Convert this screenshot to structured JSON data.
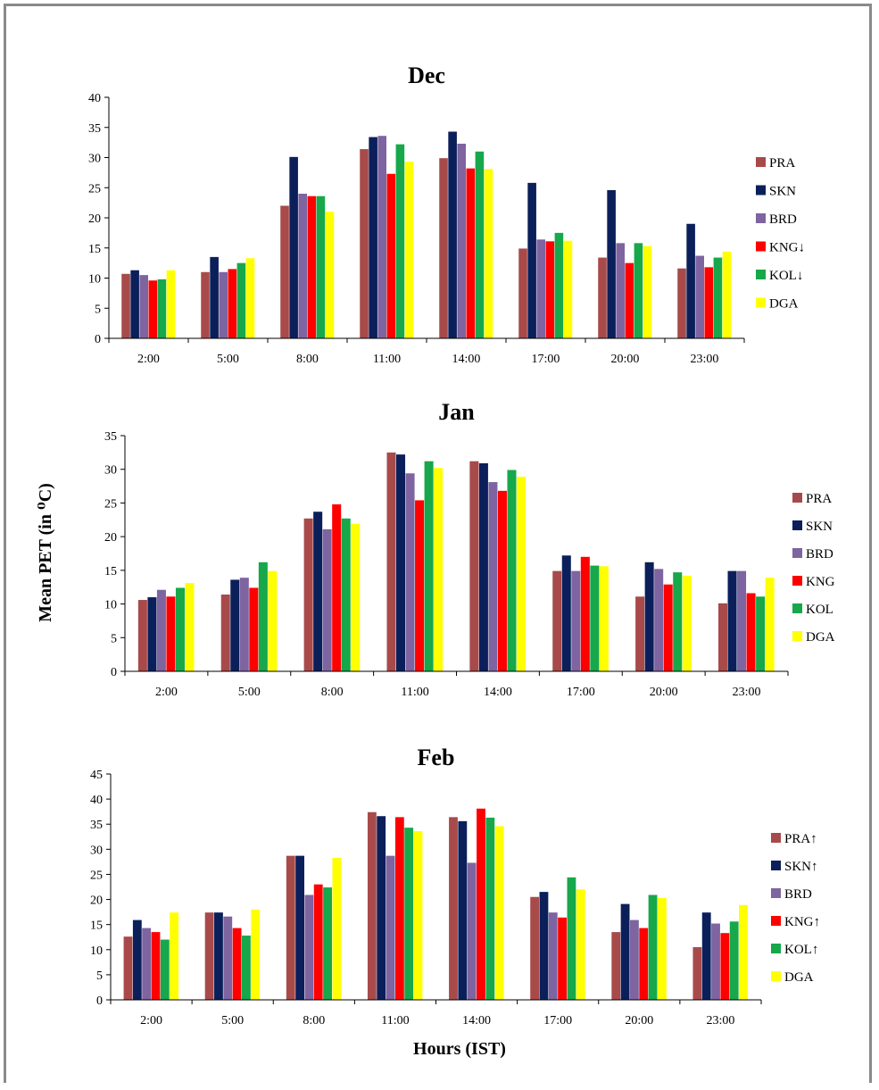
{
  "chart_data": [
    {
      "type": "bar",
      "title": "Dec",
      "categories": [
        "2:00",
        "5:00",
        "8:00",
        "11:00",
        "14:00",
        "17:00",
        "20:00",
        "23:00"
      ],
      "ylim": [
        0,
        40
      ],
      "yticks": [
        0,
        5,
        10,
        15,
        20,
        25,
        30,
        35,
        40
      ],
      "series": [
        {
          "name": "PRA",
          "values": [
            10.7,
            11.0,
            22.0,
            31.4,
            29.9,
            14.9,
            13.4,
            11.6
          ]
        },
        {
          "name": "SKN",
          "values": [
            11.3,
            13.5,
            30.1,
            33.4,
            34.3,
            25.8,
            24.6,
            19.0
          ]
        },
        {
          "name": "BRD",
          "values": [
            10.5,
            11.0,
            24.0,
            33.6,
            32.3,
            16.4,
            15.8,
            13.7
          ]
        },
        {
          "name": "KNG↓",
          "values": [
            9.6,
            11.5,
            23.6,
            27.3,
            28.2,
            16.1,
            12.5,
            11.8
          ]
        },
        {
          "name": "KOL↓",
          "values": [
            9.8,
            12.5,
            23.6,
            32.2,
            31.0,
            17.5,
            15.8,
            13.4
          ]
        },
        {
          "name": "DGA",
          "values": [
            11.3,
            13.3,
            21.0,
            29.3,
            28.1,
            16.2,
            15.3,
            14.4
          ]
        }
      ]
    },
    {
      "type": "bar",
      "title": "Jan",
      "ylabel": "Mean PET (in ⁰C)",
      "categories": [
        "2:00",
        "5:00",
        "8:00",
        "11:00",
        "14:00",
        "17:00",
        "20:00",
        "23:00"
      ],
      "ylim": [
        0,
        35
      ],
      "yticks": [
        0,
        5,
        10,
        15,
        20,
        25,
        30,
        35
      ],
      "series": [
        {
          "name": "PRA",
          "values": [
            10.6,
            11.4,
            22.7,
            32.5,
            31.2,
            14.9,
            11.1,
            10.1
          ]
        },
        {
          "name": "SKN",
          "values": [
            11.0,
            13.6,
            23.7,
            32.2,
            30.9,
            17.2,
            16.2,
            14.9
          ]
        },
        {
          "name": "BRD",
          "values": [
            12.1,
            13.9,
            21.1,
            29.4,
            28.1,
            14.9,
            15.2,
            14.9
          ]
        },
        {
          "name": "KNG",
          "values": [
            11.1,
            12.4,
            24.8,
            25.4,
            26.8,
            17.0,
            12.9,
            11.6
          ]
        },
        {
          "name": "KOL",
          "values": [
            12.4,
            16.2,
            22.7,
            31.2,
            29.9,
            15.7,
            14.7,
            11.1
          ]
        },
        {
          "name": "DGA",
          "values": [
            13.1,
            14.9,
            21.9,
            30.2,
            28.9,
            15.6,
            14.2,
            13.9
          ]
        }
      ]
    },
    {
      "type": "bar",
      "title": "Feb",
      "xlabel": "Hours (IST)",
      "categories": [
        "2:00",
        "5:00",
        "8:00",
        "11:00",
        "14:00",
        "17:00",
        "20:00",
        "23:00"
      ],
      "ylim": [
        0,
        45
      ],
      "yticks": [
        0,
        5,
        10,
        15,
        20,
        25,
        30,
        35,
        40,
        45
      ],
      "series": [
        {
          "name": "PRA↑",
          "values": [
            12.6,
            17.4,
            28.7,
            37.4,
            36.4,
            20.5,
            13.5,
            10.5
          ]
        },
        {
          "name": "SKN↑",
          "values": [
            15.9,
            17.4,
            28.7,
            36.6,
            35.6,
            21.5,
            19.1,
            17.4
          ]
        },
        {
          "name": "BRD",
          "values": [
            14.3,
            16.6,
            20.9,
            28.7,
            27.3,
            17.4,
            15.9,
            15.2
          ]
        },
        {
          "name": "KNG↑",
          "values": [
            13.5,
            14.3,
            23.0,
            36.4,
            38.1,
            16.4,
            14.3,
            13.3
          ]
        },
        {
          "name": "KOL↑",
          "values": [
            12.0,
            12.8,
            22.4,
            34.3,
            36.3,
            24.4,
            20.9,
            15.6
          ]
        },
        {
          "name": "DGA",
          "values": [
            17.4,
            18.0,
            28.3,
            33.6,
            34.6,
            22.0,
            20.3,
            18.9
          ]
        }
      ]
    }
  ],
  "colors": [
    "#a84a4a",
    "#0b1f5a",
    "#7e64a0",
    "#ff0000",
    "#16a84a",
    "#ffff00"
  ]
}
